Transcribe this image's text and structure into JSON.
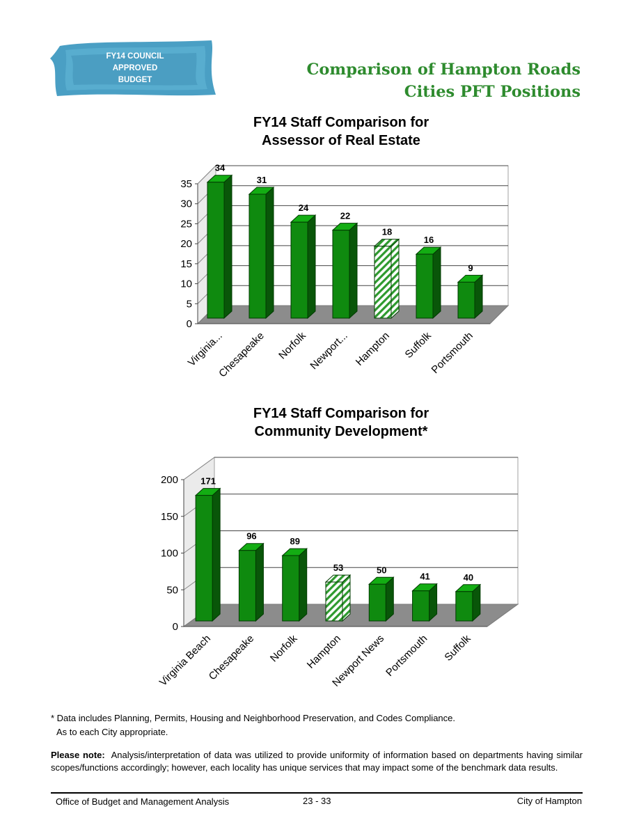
{
  "badge": {
    "lines": [
      "FY14 COUNCIL",
      "APPROVED",
      "BUDGET"
    ]
  },
  "page_title": {
    "line1": "Comparison of Hampton Roads",
    "line2": "Cities PFT Positions"
  },
  "chart_data": [
    {
      "type": "bar",
      "title_lines": [
        "FY14  Staff Comparison for",
        "Assessor of Real Estate"
      ],
      "categories": [
        "Virginia...",
        "Chesapeake",
        "Norfolk",
        "Newport...",
        "Hampton",
        "Suffolk",
        "Portsmouth"
      ],
      "values": [
        34,
        31,
        24,
        22,
        18,
        16,
        9
      ],
      "highlight": "Hampton",
      "ylim": [
        0,
        35
      ],
      "yticks": [
        0,
        5,
        10,
        15,
        20,
        25,
        30,
        35
      ],
      "grid": true,
      "style": "3d",
      "colors": {
        "bar": "#0f8a0f",
        "highlight_bar": "#ffffff",
        "highlight_hatch": "#2e9a2e",
        "floor": "#8c8c8c"
      }
    },
    {
      "type": "bar",
      "title_lines": [
        "FY14  Staff Comparison for",
        "Community Development*"
      ],
      "categories": [
        "Virginia Beach",
        "Chesapeake",
        "Norfolk",
        "Hampton",
        "Newport News",
        "Portsmouth",
        "Suffolk"
      ],
      "values": [
        171,
        96,
        89,
        53,
        50,
        41,
        40
      ],
      "highlight": "Hampton",
      "ylim": [
        0,
        200
      ],
      "yticks": [
        0,
        50,
        100,
        150,
        200
      ],
      "grid": true,
      "style": "3d",
      "colors": {
        "bar": "#0f8a0f",
        "highlight_bar": "#ffffff",
        "highlight_hatch": "#2e9a2e",
        "floor": "#8c8c8c"
      }
    }
  ],
  "footnote": {
    "line1": "* Data includes Planning, Permits, Housing and Neighborhood Preservation, and Codes Compliance.",
    "line2": "As to each City appropriate."
  },
  "note": {
    "label": "Please note:",
    "text": "Analysis/interpretation of data was utilized to provide uniformity of information based on departments having similar scopes/functions accordingly; however, each locality has unique services that may impact some of the benchmark data results."
  },
  "footer": {
    "left": "Office of Budget and Management Analysis",
    "center": "23 - 33",
    "right": "City of Hampton"
  }
}
